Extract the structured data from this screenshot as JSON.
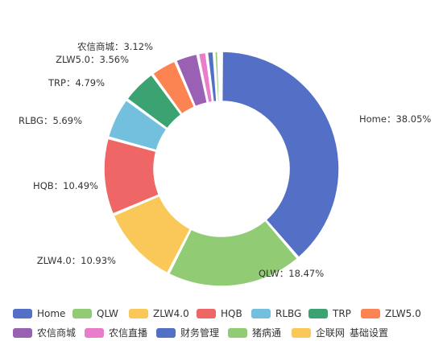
{
  "chart_data": {
    "type": "pie",
    "donut": true,
    "legend_position": "bottom",
    "slices": [
      {
        "name": "Home",
        "value": 38.05,
        "label": "Home：38.05%",
        "color": "#5470c6"
      },
      {
        "name": "QLW",
        "value": 18.47,
        "label": "QLW：18.47%",
        "color": "#91cc75"
      },
      {
        "name": "ZLW4.0",
        "value": 10.93,
        "label": "ZLW4.0：10.93%",
        "color": "#fac858"
      },
      {
        "name": "HQB",
        "value": 10.49,
        "label": "HQB：10.49%",
        "color": "#ee6666"
      },
      {
        "name": "RLBG",
        "value": 5.69,
        "label": "RLBG：5.69%",
        "color": "#73c0de"
      },
      {
        "name": "TRP",
        "value": 4.79,
        "label": "TRP：4.79%",
        "color": "#3ba272"
      },
      {
        "name": "ZLW5.0",
        "value": 3.56,
        "label": "ZLW5.0：3.56%",
        "color": "#fc8452"
      },
      {
        "name": "农信商城",
        "value": 3.12,
        "label": "农信商城：3.12%",
        "color": "#9a60b4"
      },
      {
        "name": "农信直播",
        "value": 1.2,
        "label": "",
        "color": "#ea7ccc"
      },
      {
        "name": "财务管理",
        "value": 1.0,
        "label": "",
        "color": "#5470c6"
      },
      {
        "name": "猪病通",
        "value": 0.6,
        "label": "",
        "color": "#91cc75"
      },
      {
        "name": "企联网_基础设置",
        "value": 0.4,
        "label": "",
        "color": "#fac858"
      }
    ],
    "legend": [
      {
        "name": "Home",
        "color": "#5470c6"
      },
      {
        "name": "QLW",
        "color": "#91cc75"
      },
      {
        "name": "ZLW4.0",
        "color": "#fac858"
      },
      {
        "name": "HQB",
        "color": "#ee6666"
      },
      {
        "name": "RLBG",
        "color": "#73c0de"
      },
      {
        "name": "TRP",
        "color": "#3ba272"
      },
      {
        "name": "ZLW5.0",
        "color": "#fc8452"
      },
      {
        "name": "农信商城",
        "color": "#9a60b4"
      },
      {
        "name": "农信直播",
        "color": "#ea7ccc"
      },
      {
        "name": "财务管理",
        "color": "#5470c6"
      },
      {
        "name": "猪病通",
        "color": "#91cc75"
      },
      {
        "name": "企联网_基础设置",
        "color": "#fac858"
      }
    ]
  }
}
